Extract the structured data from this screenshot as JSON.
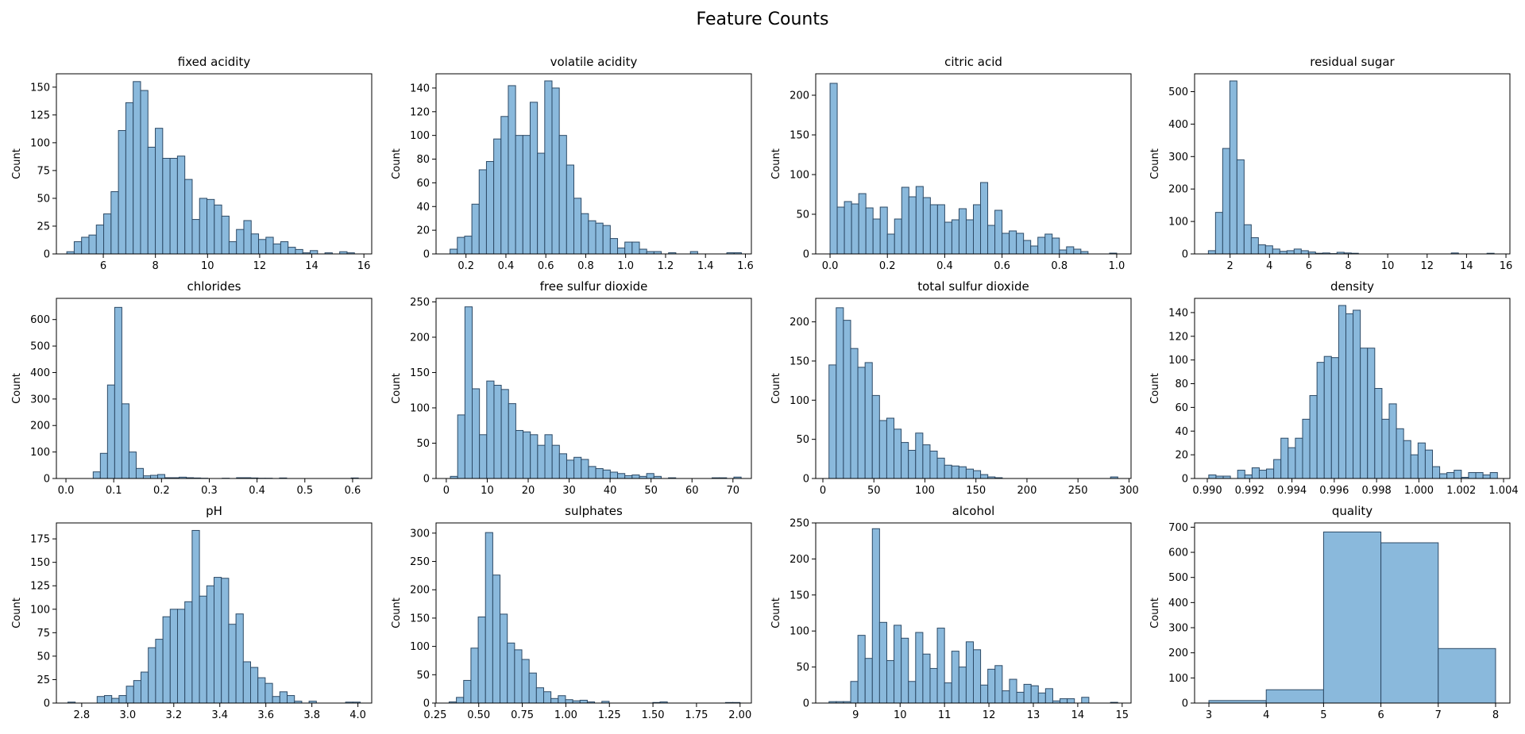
{
  "figure": {
    "title": "Feature Counts"
  },
  "style": {
    "bar_fill": "#8ab9dc",
    "bar_stroke": "#2d4a66",
    "axis_color": "#000000"
  },
  "chart_data": [
    {
      "type": "bar",
      "title": "fixed acidity",
      "xlabel": "",
      "ylabel": "Count",
      "xlim": [
        4.2,
        16.3
      ],
      "ylim": [
        0,
        162
      ],
      "xticks": [
        6,
        8,
        10,
        12,
        14,
        16
      ],
      "xtick_labels": [
        "6",
        "8",
        "10",
        "12",
        "14",
        "16"
      ],
      "yticks": [
        0,
        25,
        50,
        75,
        100,
        125,
        150
      ],
      "ytick_labels": [
        "0",
        "25",
        "50",
        "75",
        "100",
        "125",
        "150"
      ],
      "bin_start": 4.6,
      "bin_width": 0.283,
      "values": [
        2,
        11,
        15,
        17,
        26,
        36,
        56,
        111,
        136,
        155,
        147,
        96,
        113,
        86,
        86,
        88,
        67,
        31,
        50,
        49,
        44,
        34,
        11,
        22,
        30,
        18,
        13,
        15,
        9,
        11,
        6,
        4,
        1,
        3,
        0,
        1,
        0,
        2,
        1,
        0
      ]
    },
    {
      "type": "bar",
      "title": "volatile acidity",
      "xlabel": "",
      "ylabel": "Count",
      "xlim": [
        0.05,
        1.63
      ],
      "ylim": [
        0,
        152
      ],
      "xticks": [
        0.2,
        0.4,
        0.6,
        0.8,
        1.0,
        1.2,
        1.4,
        1.6
      ],
      "xtick_labels": [
        "0.2",
        "0.4",
        "0.6",
        "0.8",
        "1.0",
        "1.2",
        "1.4",
        "1.6"
      ],
      "yticks": [
        0,
        20,
        40,
        60,
        80,
        100,
        120,
        140
      ],
      "ytick_labels": [
        "0",
        "20",
        "40",
        "60",
        "80",
        "100",
        "120",
        "140"
      ],
      "bin_start": 0.12,
      "bin_width": 0.0365,
      "values": [
        4,
        14,
        15,
        42,
        71,
        78,
        97,
        116,
        142,
        100,
        100,
        128,
        85,
        146,
        140,
        100,
        75,
        47,
        34,
        28,
        26,
        24,
        13,
        5,
        10,
        10,
        4,
        2,
        2,
        0,
        1,
        0,
        0,
        2,
        0,
        0,
        0,
        0,
        1,
        1
      ]
    },
    {
      "type": "bar",
      "title": "citric acid",
      "xlabel": "",
      "ylabel": "Count",
      "xlim": [
        -0.05,
        1.05
      ],
      "ylim": [
        0,
        227
      ],
      "xticks": [
        0.0,
        0.2,
        0.4,
        0.6,
        0.8,
        1.0
      ],
      "xtick_labels": [
        "0.0",
        "0.2",
        "0.4",
        "0.6",
        "0.8",
        "1.0"
      ],
      "yticks": [
        0,
        50,
        100,
        150,
        200
      ],
      "ytick_labels": [
        "0",
        "50",
        "100",
        "150",
        "200"
      ],
      "bin_start": 0.0,
      "bin_width": 0.025,
      "values": [
        215,
        59,
        66,
        63,
        76,
        58,
        44,
        59,
        25,
        44,
        84,
        72,
        85,
        71,
        62,
        62,
        40,
        43,
        57,
        43,
        62,
        90,
        36,
        55,
        26,
        29,
        26,
        17,
        10,
        21,
        25,
        20,
        5,
        9,
        6,
        3,
        0,
        0,
        0,
        1
      ]
    },
    {
      "type": "bar",
      "title": "residual sugar",
      "xlabel": "",
      "ylabel": "Count",
      "xlim": [
        0.2,
        16.2
      ],
      "ylim": [
        0,
        555
      ],
      "xticks": [
        2,
        4,
        6,
        8,
        10,
        12,
        14,
        16
      ],
      "xtick_labels": [
        "2",
        "4",
        "6",
        "8",
        "10",
        "12",
        "14",
        "16"
      ],
      "yticks": [
        0,
        100,
        200,
        300,
        400,
        500
      ],
      "ytick_labels": [
        "0",
        "100",
        "200",
        "300",
        "400",
        "500"
      ],
      "bin_start": 0.9,
      "bin_width": 0.3625,
      "values": [
        10,
        128,
        325,
        533,
        290,
        90,
        50,
        28,
        25,
        15,
        8,
        10,
        15,
        10,
        6,
        2,
        3,
        1,
        5,
        3,
        2,
        0,
        0,
        0,
        0,
        0,
        0,
        0,
        0,
        0,
        0,
        0,
        0,
        0,
        3,
        0,
        0,
        0,
        0,
        2
      ]
    },
    {
      "type": "bar",
      "title": "chlorides",
      "xlabel": "",
      "ylabel": "Count",
      "xlim": [
        -0.02,
        0.64
      ],
      "ylim": [
        0,
        680
      ],
      "xticks": [
        0.0,
        0.1,
        0.2,
        0.3,
        0.4,
        0.5,
        0.6
      ],
      "xtick_labels": [
        "0.0",
        "0.1",
        "0.2",
        "0.3",
        "0.4",
        "0.5",
        "0.6"
      ],
      "yticks": [
        0,
        100,
        200,
        300,
        400,
        500,
        600
      ],
      "ytick_labels": [
        "0",
        "100",
        "200",
        "300",
        "400",
        "500",
        "600"
      ],
      "bin_start": 0.012,
      "bin_width": 0.015,
      "values": [
        0,
        0,
        0,
        25,
        95,
        353,
        646,
        282,
        100,
        38,
        10,
        12,
        15,
        3,
        3,
        5,
        3,
        2,
        1,
        0,
        0,
        1,
        0,
        3,
        3,
        2,
        1,
        1,
        0,
        2,
        0,
        0,
        0,
        0,
        0,
        0,
        0,
        0,
        0,
        2
      ]
    },
    {
      "type": "bar",
      "title": "free sulfur dioxide",
      "xlabel": "",
      "ylabel": "Count",
      "xlim": [
        -2.5,
        74.5
      ],
      "ylim": [
        0,
        255
      ],
      "xticks": [
        0,
        10,
        20,
        30,
        40,
        50,
        60,
        70
      ],
      "xtick_labels": [
        "0",
        "10",
        "20",
        "30",
        "40",
        "50",
        "60",
        "70"
      ],
      "yticks": [
        0,
        50,
        100,
        150,
        200,
        250
      ],
      "ytick_labels": [
        "0",
        "50",
        "100",
        "150",
        "200",
        "250"
      ],
      "bin_start": 1.0,
      "bin_width": 1.775,
      "values": [
        3,
        90,
        243,
        127,
        62,
        138,
        132,
        126,
        106,
        68,
        66,
        62,
        47,
        62,
        47,
        35,
        26,
        30,
        27,
        17,
        14,
        12,
        9,
        7,
        4,
        5,
        3,
        7,
        3,
        0,
        1,
        0,
        0,
        0,
        0,
        0,
        1,
        1,
        0,
        2
      ]
    },
    {
      "type": "bar",
      "title": "total sulfur dioxide",
      "xlabel": "",
      "ylabel": "Count",
      "xlim": [
        -7,
        302
      ],
      "ylim": [
        0,
        230
      ],
      "xticks": [
        0,
        50,
        100,
        150,
        200,
        250,
        300
      ],
      "xtick_labels": [
        "0",
        "50",
        "100",
        "150",
        "200",
        "250",
        "300"
      ],
      "yticks": [
        0,
        50,
        100,
        150,
        200
      ],
      "ytick_labels": [
        "0",
        "50",
        "100",
        "150",
        "200"
      ],
      "bin_start": 6,
      "bin_width": 7.075,
      "values": [
        145,
        218,
        202,
        166,
        142,
        148,
        106,
        74,
        77,
        63,
        46,
        36,
        58,
        43,
        35,
        26,
        17,
        16,
        15,
        12,
        10,
        5,
        2,
        1,
        0,
        0,
        0,
        0,
        0,
        0,
        0,
        0,
        0,
        0,
        0,
        0,
        0,
        0,
        0,
        2
      ]
    },
    {
      "type": "bar",
      "title": "density",
      "xlabel": "",
      "ylabel": "Count",
      "xlim": [
        0.9894,
        1.0043
      ],
      "ylim": [
        0,
        152
      ],
      "xticks": [
        0.99,
        0.992,
        0.994,
        0.996,
        0.998,
        1.0,
        1.002,
        1.004
      ],
      "xtick_labels": [
        "0.990",
        "0.992",
        "0.994",
        "0.996",
        "0.998",
        "1.000",
        "1.002",
        "1.004"
      ],
      "yticks": [
        0,
        20,
        40,
        60,
        80,
        100,
        120,
        140
      ],
      "ytick_labels": [
        "0",
        "20",
        "40",
        "60",
        "80",
        "100",
        "120",
        "140"
      ],
      "bin_start": 0.99007,
      "bin_width": 0.000341,
      "values": [
        3,
        2,
        2,
        0,
        7,
        3,
        9,
        7,
        8,
        16,
        34,
        26,
        34,
        50,
        70,
        98,
        103,
        102,
        146,
        139,
        142,
        110,
        110,
        76,
        50,
        63,
        42,
        32,
        20,
        30,
        24,
        10,
        4,
        5,
        7,
        1,
        5,
        5,
        3,
        5
      ]
    },
    {
      "type": "bar",
      "title": "pH",
      "xlabel": "",
      "ylabel": "Count",
      "xlim": [
        2.69,
        4.06
      ],
      "ylim": [
        0,
        192
      ],
      "xticks": [
        2.8,
        3.0,
        3.2,
        3.4,
        3.6,
        3.8,
        4.0
      ],
      "xtick_labels": [
        "2.8",
        "3.0",
        "3.2",
        "3.4",
        "3.6",
        "3.8",
        "4.0"
      ],
      "yticks": [
        0,
        25,
        50,
        75,
        100,
        125,
        150,
        175
      ],
      "ytick_labels": [
        "0",
        "25",
        "50",
        "75",
        "100",
        "125",
        "150",
        "175"
      ],
      "bin_start": 2.74,
      "bin_width": 0.03175,
      "values": [
        1,
        0,
        0,
        0,
        7,
        8,
        5,
        8,
        18,
        24,
        33,
        59,
        68,
        92,
        100,
        100,
        108,
        184,
        114,
        125,
        134,
        133,
        84,
        95,
        44,
        38,
        27,
        21,
        7,
        12,
        8,
        2,
        0,
        2,
        0,
        0,
        0,
        0,
        1,
        1
      ]
    },
    {
      "type": "bar",
      "title": "sulphates",
      "xlabel": "",
      "ylabel": "Count",
      "xlim": [
        0.255,
        2.065
      ],
      "ylim": [
        0,
        318
      ],
      "xticks": [
        0.25,
        0.5,
        0.75,
        1.0,
        1.25,
        1.5,
        1.75,
        2.0
      ],
      "xtick_labels": [
        "0.25",
        "0.50",
        "0.75",
        "1.00",
        "1.25",
        "1.50",
        "1.75",
        "2.00"
      ],
      "yticks": [
        0,
        50,
        100,
        150,
        200,
        250,
        300
      ],
      "ytick_labels": [
        "0",
        "50",
        "100",
        "150",
        "200",
        "250",
        "300"
      ],
      "bin_start": 0.33,
      "bin_width": 0.04175,
      "values": [
        2,
        10,
        40,
        97,
        152,
        301,
        226,
        157,
        106,
        94,
        77,
        53,
        27,
        20,
        8,
        13,
        6,
        4,
        5,
        2,
        0,
        3,
        0,
        0,
        0,
        0,
        0,
        0,
        1,
        2,
        0,
        0,
        0,
        0,
        0,
        0,
        0,
        0,
        1,
        1
      ]
    },
    {
      "type": "bar",
      "title": "alcohol",
      "xlabel": "",
      "ylabel": "Count",
      "xlim": [
        8.1,
        15.2
      ],
      "ylim": [
        0,
        250
      ],
      "xticks": [
        9,
        10,
        11,
        12,
        13,
        14,
        15
      ],
      "xtick_labels": [
        "9",
        "10",
        "11",
        "12",
        "13",
        "14",
        "15"
      ],
      "yticks": [
        0,
        50,
        100,
        150,
        200,
        250
      ],
      "ytick_labels": [
        "0",
        "50",
        "100",
        "150",
        "200",
        "250"
      ],
      "bin_start": 8.4,
      "bin_width": 0.1625,
      "values": [
        2,
        2,
        2,
        30,
        94,
        62,
        242,
        112,
        59,
        108,
        90,
        30,
        98,
        68,
        48,
        104,
        28,
        72,
        50,
        85,
        74,
        25,
        47,
        52,
        17,
        33,
        15,
        26,
        24,
        14,
        20,
        3,
        6,
        6,
        0,
        8,
        0,
        0,
        0,
        1
      ]
    },
    {
      "type": "bar",
      "title": "quality",
      "xlabel": "",
      "ylabel": "Count",
      "xlim": [
        2.75,
        8.25
      ],
      "ylim": [
        0,
        717
      ],
      "xticks": [
        3,
        4,
        5,
        6,
        7,
        8
      ],
      "xtick_labels": [
        "3",
        "4",
        "5",
        "6",
        "7",
        "8"
      ],
      "yticks": [
        0,
        100,
        200,
        300,
        400,
        500,
        600,
        700
      ],
      "ytick_labels": [
        "0",
        "100",
        "200",
        "300",
        "400",
        "500",
        "600",
        "700"
      ],
      "bin_start": 3,
      "bin_width": 1,
      "values": [
        10,
        53,
        681,
        638,
        217
      ]
    }
  ]
}
